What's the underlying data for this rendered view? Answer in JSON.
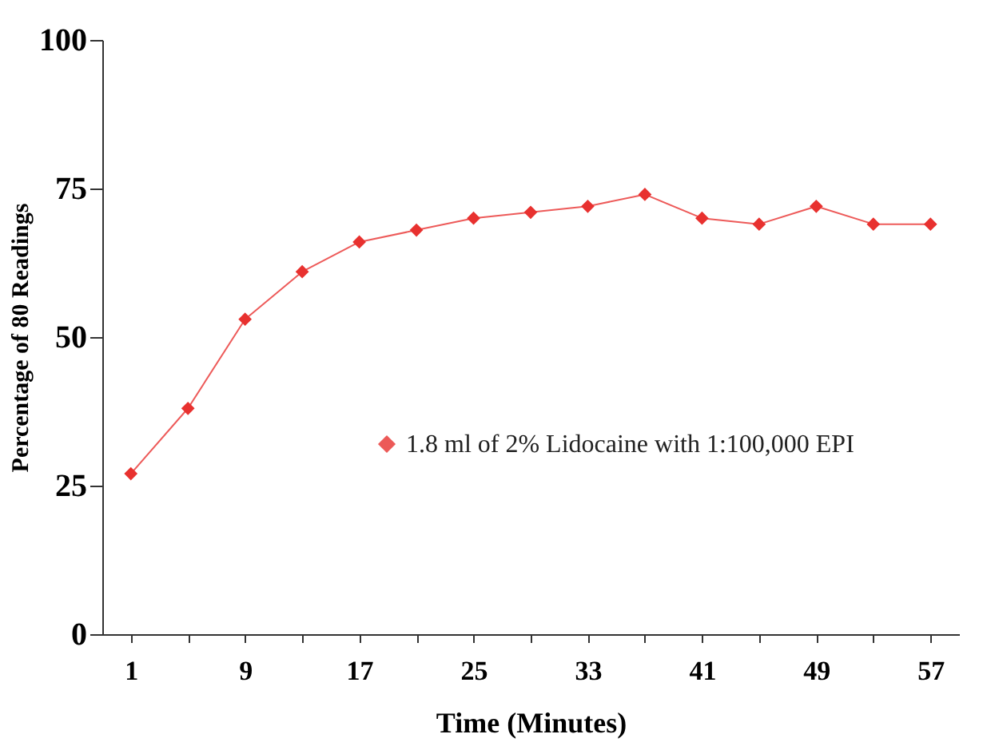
{
  "chart_data": {
    "type": "line",
    "xlabel": "Time (Minutes)",
    "ylabel": "Percentage of 80 Readings",
    "categories": [
      "1",
      null,
      "9",
      null,
      "17",
      null,
      "25",
      null,
      "33",
      null,
      "41",
      null,
      "49",
      null,
      "57"
    ],
    "series": [
      {
        "name": "1.8 ml of 2% Lidocaine with 1:100,000 EPI",
        "color": "#e8312f",
        "values": [
          27,
          38,
          53,
          61,
          66,
          68,
          70,
          71,
          72,
          74,
          70,
          69,
          72,
          69,
          69
        ]
      }
    ],
    "ylim": [
      0,
      100
    ],
    "yticks": [
      0,
      25,
      50,
      75,
      100
    ],
    "grid": false,
    "legend": "bottom right",
    "marker": "diamond",
    "line_style": "solid"
  }
}
